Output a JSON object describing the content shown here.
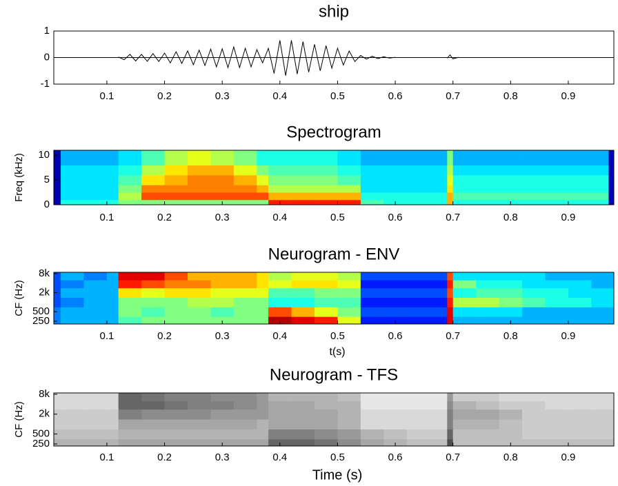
{
  "chart_data": [
    {
      "type": "line",
      "title": "ship",
      "color": "#000000",
      "x": [
        0.12,
        0.13,
        0.14,
        0.15,
        0.16,
        0.17,
        0.18,
        0.19,
        0.2,
        0.21,
        0.22,
        0.23,
        0.24,
        0.25,
        0.26,
        0.27,
        0.28,
        0.29,
        0.3,
        0.31,
        0.32,
        0.33,
        0.34,
        0.35,
        0.36,
        0.37,
        0.38,
        0.39,
        0.4,
        0.41,
        0.42,
        0.43,
        0.44,
        0.45,
        0.46,
        0.47,
        0.48,
        0.49,
        0.5,
        0.51,
        0.52,
        0.53,
        0.54,
        0.55,
        0.56,
        0.57,
        0.58,
        0.59,
        0.6,
        0.65,
        0.69,
        0.695,
        0.7,
        0.71
      ],
      "values": [
        0.02,
        0.08,
        0.12,
        0.13,
        0.12,
        0.14,
        0.15,
        0.15,
        0.17,
        0.2,
        0.22,
        0.22,
        0.25,
        0.27,
        0.28,
        0.3,
        0.32,
        0.35,
        0.33,
        0.38,
        0.4,
        0.38,
        0.35,
        0.35,
        0.3,
        0.2,
        0.35,
        0.6,
        0.65,
        0.68,
        0.65,
        0.62,
        0.6,
        0.55,
        0.5,
        0.5,
        0.45,
        0.4,
        0.35,
        0.28,
        0.25,
        0.15,
        0.08,
        0.06,
        0.05,
        0.04,
        0.03,
        0.02,
        0.01,
        null,
        0.02,
        0.1,
        0.05,
        0.01
      ],
      "xlim": [
        0.008,
        0.979
      ],
      "xticks": [
        0.1,
        0.2,
        0.3,
        0.4,
        0.5,
        0.6,
        0.7,
        0.8,
        0.9
      ],
      "ylim": [
        -1,
        1
      ],
      "yticks": [
        -1,
        0,
        1
      ]
    },
    {
      "type": "heatmap",
      "title": "Spectrogram",
      "y_label": "Freq (kHz)",
      "colormap": "jet",
      "xbins": [
        0.008,
        0.02,
        0.06,
        0.1,
        0.12,
        0.16,
        0.2,
        0.24,
        0.28,
        0.32,
        0.36,
        0.38,
        0.42,
        0.46,
        0.5,
        0.54,
        0.58,
        0.62,
        0.66,
        0.69,
        0.7,
        0.74,
        0.78,
        0.82,
        0.86,
        0.9,
        0.94,
        0.97,
        0.979
      ],
      "ybins": [
        0,
        1,
        2.5,
        4,
        6,
        8,
        11
      ],
      "z": [
        [
          0.05,
          0.4,
          0.4,
          0.4,
          0.5,
          0.5,
          0.5,
          0.5,
          0.5,
          0.5,
          0.5,
          0.85,
          0.85,
          0.85,
          0.85,
          0.45,
          0.4,
          0.4,
          0.4,
          0.7,
          0.4,
          0.4,
          0.4,
          0.4,
          0.4,
          0.4,
          0.4,
          0.05
        ],
        [
          0.05,
          0.35,
          0.35,
          0.35,
          0.55,
          0.8,
          0.8,
          0.8,
          0.8,
          0.8,
          0.8,
          0.7,
          0.7,
          0.7,
          0.7,
          0.4,
          0.4,
          0.4,
          0.4,
          0.7,
          0.45,
          0.45,
          0.45,
          0.45,
          0.45,
          0.45,
          0.45,
          0.05
        ],
        [
          0.05,
          0.35,
          0.35,
          0.35,
          0.5,
          0.75,
          0.75,
          0.75,
          0.75,
          0.75,
          0.7,
          0.55,
          0.55,
          0.55,
          0.55,
          0.35,
          0.35,
          0.35,
          0.35,
          0.65,
          0.4,
          0.4,
          0.4,
          0.4,
          0.4,
          0.4,
          0.4,
          0.05
        ],
        [
          0.05,
          0.35,
          0.35,
          0.35,
          0.45,
          0.65,
          0.7,
          0.75,
          0.75,
          0.7,
          0.6,
          0.5,
          0.5,
          0.5,
          0.45,
          0.35,
          0.35,
          0.35,
          0.35,
          0.6,
          0.4,
          0.4,
          0.4,
          0.4,
          0.4,
          0.4,
          0.4,
          0.05
        ],
        [
          0.05,
          0.35,
          0.35,
          0.35,
          0.4,
          0.55,
          0.65,
          0.7,
          0.7,
          0.6,
          0.5,
          0.45,
          0.45,
          0.45,
          0.4,
          0.35,
          0.35,
          0.35,
          0.35,
          0.55,
          0.35,
          0.35,
          0.35,
          0.35,
          0.35,
          0.35,
          0.35,
          0.05
        ],
        [
          0.05,
          0.3,
          0.3,
          0.3,
          0.35,
          0.45,
          0.55,
          0.6,
          0.55,
          0.5,
          0.4,
          0.4,
          0.4,
          0.4,
          0.35,
          0.3,
          0.3,
          0.3,
          0.3,
          0.5,
          0.3,
          0.3,
          0.3,
          0.3,
          0.3,
          0.3,
          0.3,
          0.05
        ]
      ],
      "xlim": [
        0.008,
        0.979
      ],
      "xticks": [
        0.1,
        0.2,
        0.3,
        0.4,
        0.5,
        0.6,
        0.7,
        0.8,
        0.9
      ],
      "ylim": [
        0,
        11
      ],
      "yticks": [
        0,
        5,
        10
      ]
    },
    {
      "type": "heatmap",
      "title": "Neurogram - ENV",
      "x_label": "t(s)",
      "y_label": "CF (Hz)",
      "colormap": "jet",
      "log_y": true,
      "xbins": [
        0.008,
        0.02,
        0.06,
        0.1,
        0.12,
        0.16,
        0.2,
        0.24,
        0.28,
        0.32,
        0.36,
        0.38,
        0.42,
        0.46,
        0.5,
        0.54,
        0.58,
        0.62,
        0.66,
        0.69,
        0.7,
        0.74,
        0.78,
        0.82,
        0.86,
        0.9,
        0.94,
        0.97,
        0.979
      ],
      "ybins": [
        204,
        350,
        700,
        1400,
        2800,
        5000,
        8800
      ],
      "z": [
        [
          0.25,
          0.3,
          0.3,
          0.3,
          0.45,
          0.5,
          0.5,
          0.5,
          0.5,
          0.5,
          0.5,
          0.95,
          0.9,
          0.85,
          0.6,
          0.15,
          0.15,
          0.15,
          0.15,
          0.9,
          0.3,
          0.3,
          0.3,
          0.3,
          0.3,
          0.3,
          0.3,
          0.3
        ],
        [
          0.25,
          0.3,
          0.3,
          0.3,
          0.5,
          0.45,
          0.5,
          0.5,
          0.45,
          0.5,
          0.5,
          0.8,
          0.7,
          0.6,
          0.5,
          0.2,
          0.2,
          0.2,
          0.2,
          0.9,
          0.35,
          0.35,
          0.35,
          0.3,
          0.3,
          0.3,
          0.3,
          0.3
        ],
        [
          0.2,
          0.25,
          0.3,
          0.3,
          0.5,
          0.5,
          0.5,
          0.55,
          0.55,
          0.5,
          0.5,
          0.4,
          0.4,
          0.45,
          0.45,
          0.15,
          0.15,
          0.15,
          0.15,
          0.85,
          0.55,
          0.55,
          0.5,
          0.45,
          0.4,
          0.4,
          0.35,
          0.35
        ],
        [
          0.2,
          0.3,
          0.3,
          0.3,
          0.65,
          0.6,
          0.65,
          0.65,
          0.6,
          0.6,
          0.6,
          0.45,
          0.45,
          0.5,
          0.5,
          0.2,
          0.2,
          0.2,
          0.2,
          0.8,
          0.4,
          0.45,
          0.45,
          0.4,
          0.4,
          0.35,
          0.35,
          0.35
        ],
        [
          0.2,
          0.25,
          0.3,
          0.3,
          0.85,
          0.8,
          0.75,
          0.75,
          0.7,
          0.7,
          0.65,
          0.6,
          0.65,
          0.65,
          0.6,
          0.15,
          0.15,
          0.15,
          0.15,
          0.85,
          0.5,
          0.4,
          0.4,
          0.35,
          0.35,
          0.35,
          0.3,
          0.3
        ],
        [
          0.2,
          0.3,
          0.25,
          0.3,
          0.9,
          0.9,
          0.8,
          0.7,
          0.7,
          0.7,
          0.65,
          0.55,
          0.6,
          0.6,
          0.55,
          0.2,
          0.2,
          0.2,
          0.2,
          0.8,
          0.35,
          0.35,
          0.35,
          0.35,
          0.3,
          0.3,
          0.3,
          0.3
        ]
      ],
      "xlim": [
        0.008,
        0.979
      ],
      "xticks": [
        0.1,
        0.2,
        0.3,
        0.4,
        0.5,
        0.6,
        0.7,
        0.8,
        0.9
      ],
      "ylim": [
        204,
        8800
      ],
      "yticks": [
        250,
        500,
        {
          "value": 2000,
          "label": "2k"
        },
        {
          "value": 8000,
          "label": "8k"
        }
      ]
    },
    {
      "type": "heatmap",
      "title": "Neurogram - TFS",
      "x_label": "Time (s)",
      "y_label": "CF (Hz)",
      "colormap": "gray",
      "log_y": true,
      "xbins": [
        0.008,
        0.02,
        0.06,
        0.1,
        0.12,
        0.16,
        0.2,
        0.24,
        0.28,
        0.32,
        0.36,
        0.38,
        0.42,
        0.46,
        0.5,
        0.54,
        0.58,
        0.62,
        0.66,
        0.69,
        0.7,
        0.74,
        0.78,
        0.82,
        0.86,
        0.9,
        0.94,
        0.97,
        0.979
      ],
      "ybins": [
        216,
        350,
        700,
        1400,
        2800,
        5000,
        8800
      ],
      "z": [
        [
          0.3,
          0.3,
          0.3,
          0.3,
          0.35,
          0.35,
          0.35,
          0.35,
          0.35,
          0.35,
          0.35,
          0.6,
          0.6,
          0.55,
          0.45,
          0.35,
          0.3,
          0.25,
          0.25,
          0.7,
          0.25,
          0.25,
          0.25,
          0.25,
          0.25,
          0.25,
          0.25,
          0.25
        ],
        [
          0.25,
          0.25,
          0.25,
          0.25,
          0.3,
          0.3,
          0.3,
          0.3,
          0.3,
          0.3,
          0.3,
          0.5,
          0.5,
          0.45,
          0.4,
          0.3,
          0.25,
          0.2,
          0.2,
          0.6,
          0.25,
          0.25,
          0.25,
          0.2,
          0.2,
          0.2,
          0.2,
          0.2
        ],
        [
          0.2,
          0.2,
          0.2,
          0.2,
          0.35,
          0.35,
          0.35,
          0.35,
          0.35,
          0.35,
          0.3,
          0.35,
          0.35,
          0.35,
          0.3,
          0.15,
          0.15,
          0.15,
          0.15,
          0.5,
          0.3,
          0.3,
          0.25,
          0.2,
          0.2,
          0.2,
          0.2,
          0.2
        ],
        [
          0.2,
          0.2,
          0.2,
          0.2,
          0.5,
          0.45,
          0.45,
          0.45,
          0.4,
          0.4,
          0.4,
          0.35,
          0.35,
          0.35,
          0.3,
          0.15,
          0.15,
          0.15,
          0.15,
          0.5,
          0.35,
          0.35,
          0.3,
          0.2,
          0.2,
          0.2,
          0.2,
          0.2
        ],
        [
          0.15,
          0.15,
          0.15,
          0.15,
          0.6,
          0.6,
          0.55,
          0.5,
          0.5,
          0.45,
          0.4,
          0.35,
          0.35,
          0.3,
          0.3,
          0.1,
          0.1,
          0.1,
          0.1,
          0.45,
          0.3,
          0.25,
          0.2,
          0.2,
          0.15,
          0.15,
          0.15,
          0.15
        ],
        [
          0.15,
          0.15,
          0.15,
          0.15,
          0.6,
          0.55,
          0.5,
          0.5,
          0.45,
          0.45,
          0.4,
          0.3,
          0.3,
          0.3,
          0.25,
          0.1,
          0.1,
          0.1,
          0.1,
          0.4,
          0.2,
          0.2,
          0.15,
          0.15,
          0.15,
          0.15,
          0.15,
          0.15
        ]
      ],
      "xlim": [
        0.008,
        0.979
      ],
      "xticks": [
        0.1,
        0.2,
        0.3,
        0.4,
        0.5,
        0.6,
        0.7,
        0.8,
        0.9
      ],
      "ylim": [
        216,
        8800
      ],
      "yticks": [
        250,
        500,
        {
          "value": 2000,
          "label": "2k"
        },
        {
          "value": 8000,
          "label": "8k"
        }
      ]
    }
  ]
}
